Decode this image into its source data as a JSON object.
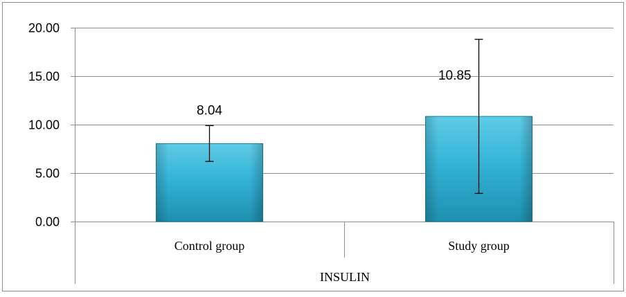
{
  "chart_data": {
    "type": "bar",
    "categories": [
      "Control group",
      "Study group"
    ],
    "group_label": "INSULIN",
    "values": [
      8.04,
      10.85
    ],
    "value_labels": [
      "8.04",
      "10.85"
    ],
    "error_bars": [
      {
        "low": 6.2,
        "high": 9.9
      },
      {
        "low": 2.9,
        "high": 18.8
      }
    ],
    "ylim": [
      0,
      20
    ],
    "yticks": [
      0,
      5,
      10,
      15,
      20
    ],
    "ytick_labels": [
      "0.00",
      "5.00",
      "10.00",
      "15.00",
      "20.00"
    ],
    "grid": true,
    "title": "",
    "xlabel": "",
    "ylabel": "",
    "colors": {
      "bar_top": "#5fcbe6",
      "bar_mid": "#35b3d6",
      "bar_bottom": "#1e8fae",
      "bar_edge": "#1a7f9b",
      "grid": "#8c8c8c",
      "text": "#000000"
    }
  }
}
